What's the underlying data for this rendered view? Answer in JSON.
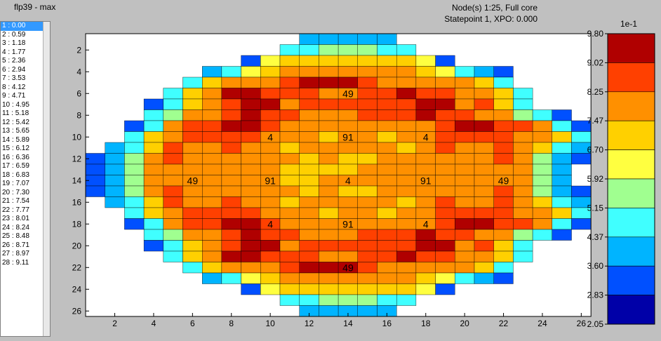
{
  "window": {
    "title": "flp39 - max"
  },
  "header": {
    "line1": "Node(s) 1:25, Full core",
    "line2": "Statepoint 1, XPO: 0.000"
  },
  "list": {
    "selected_index": 0,
    "items": [
      "1 :  0.00",
      "2 :  0.59",
      "3 :  1.18",
      "4 :  1.77",
      "5 :  2.36",
      "6 :  2.94",
      "7 :  3.53",
      "8 :  4.12",
      "9 :  4.71",
      "10 :  4.95",
      "11 :  5.18",
      "12 :  5.42",
      "13 :  5.65",
      "14 :  5.89",
      "15 :  6.12",
      "16 :  6.36",
      "17 :  6.59",
      "18 :  6.83",
      "19 :  7.07",
      "20 :  7.30",
      "21 :  7.54",
      "22 :  7.77",
      "23 :  8.01",
      "24 :  8.24",
      "25 :  8.48",
      "26 :  8.71",
      "27 :  8.97",
      "28 :  9.11"
    ]
  },
  "chart_data": {
    "type": "heatmap",
    "x_ticks": [
      "2",
      "4",
      "6",
      "8",
      "10",
      "12",
      "14",
      "16",
      "18",
      "20",
      "22",
      "24",
      "26"
    ],
    "y_ticks": [
      "2",
      "4",
      "6",
      "8",
      "10",
      "12",
      "14",
      "16",
      "18",
      "20",
      "22",
      "24",
      "26"
    ],
    "xlim": [
      0.5,
      26.5
    ],
    "ylim": [
      26.5,
      0.5
    ],
    "assembly_labels": [
      {
        "text": "49",
        "col": 13.5,
        "row": 5.5
      },
      {
        "text": "4",
        "col": 9.5,
        "row": 9.5
      },
      {
        "text": "91",
        "col": 13.5,
        "row": 9.5
      },
      {
        "text": "4",
        "col": 17.5,
        "row": 9.5
      },
      {
        "text": "49",
        "col": 5.5,
        "row": 13.5
      },
      {
        "text": "91",
        "col": 9.5,
        "row": 13.5
      },
      {
        "text": "4",
        "col": 13.5,
        "row": 13.5
      },
      {
        "text": "91",
        "col": 17.5,
        "row": 13.5
      },
      {
        "text": "49",
        "col": 21.5,
        "row": 13.5
      },
      {
        "text": "4",
        "col": 9.5,
        "row": 17.5
      },
      {
        "text": "91",
        "col": 13.5,
        "row": 17.5
      },
      {
        "text": "4",
        "col": 17.5,
        "row": 17.5
      },
      {
        "text": "49",
        "col": 13.5,
        "row": 21.5
      }
    ],
    "colorbar": {
      "title": "1e-1",
      "ticks": [
        "9.80",
        "9.02",
        "8.25",
        "7.47",
        "6.70",
        "5.92",
        "5.15",
        "4.37",
        "3.60",
        "2.83",
        "2.05"
      ],
      "range": [
        2.05,
        9.8
      ],
      "colors": [
        "#0000a8",
        "#0050ff",
        "#00b4ff",
        "#40ffff",
        "#a0ff90",
        "#ffff40",
        "#ffd000",
        "#ff9000",
        "#ff4000",
        "#b00000"
      ]
    },
    "grid": [
      "...........22222...........",
      "..........3344433..........",
      "........15666666651........",
      "......2356777777765321.....",
      ".....36777899987777763.....",
      "....3679988877889887763....",
      "...13678997888888997863....",
      "...3477898877788898877431..",
      "..137889987777777789988731.",
      "..367888877767767788887763.",
      ".2368778776777776787787632.",
      "12478777777676677777787421.",
      "1247777777666677777777742..",
      "1247777777667777777777742..",
      "12478777777676677777787421.",
      ".2368778776777776787787632.",
      "..367888877767767788887763.",
      "..137889987777777789988731.",
      "...3477898877788898877431..",
      "...13678997888888997863....",
      "....3679988877889887763....",
      ".....36777899987777763.....",
      "......2356777777765321.....",
      "........15666666651........",
      "..........3344433..........",
      "...........22222..........."
    ]
  }
}
